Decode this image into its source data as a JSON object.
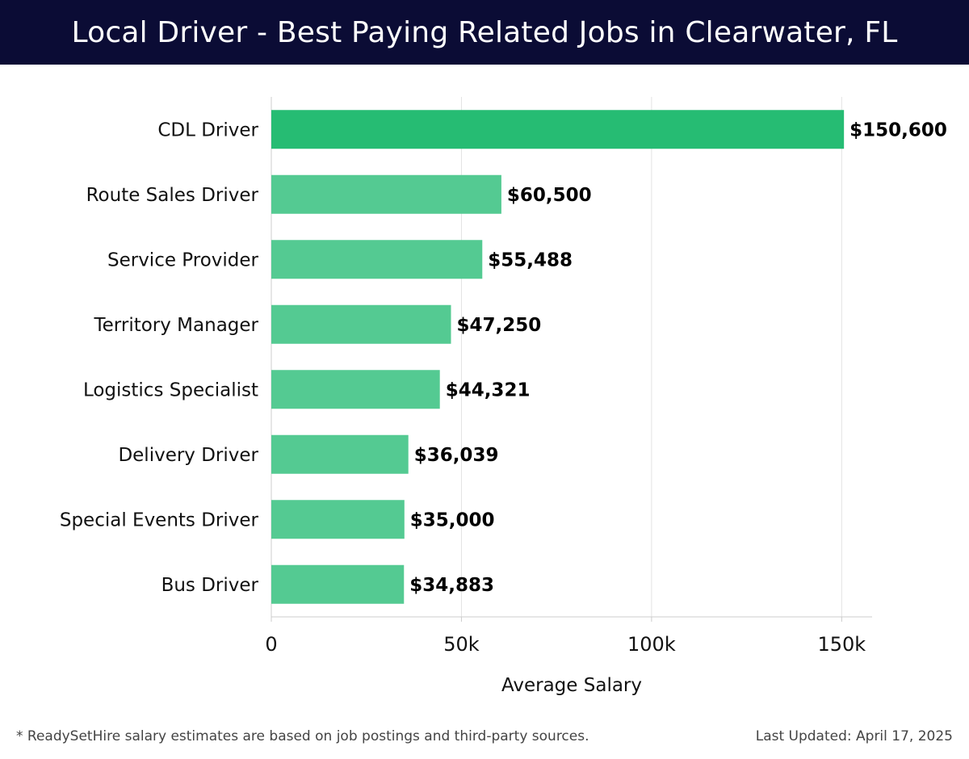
{
  "header": {
    "title": "Local Driver - Best Paying Related Jobs in Clearwater, FL"
  },
  "chart_data": {
    "type": "bar",
    "orientation": "horizontal",
    "categories": [
      "CDL Driver",
      "Route Sales Driver",
      "Service Provider",
      "Territory Manager",
      "Logistics Specialist",
      "Delivery Driver",
      "Special Events Driver",
      "Bus Driver"
    ],
    "values": [
      150600,
      60500,
      55488,
      47250,
      44321,
      36039,
      35000,
      34883
    ],
    "value_labels": [
      "$150,600",
      "$60,500",
      "$55,488",
      "$47,250",
      "$44,321",
      "$36,039",
      "$35,000",
      "$34,883"
    ],
    "xlabel": "Average Salary",
    "ylabel": "",
    "xlim": [
      0,
      158000
    ],
    "x_ticks": [
      0,
      50000,
      100000,
      150000
    ],
    "x_tick_labels": [
      "0",
      "50k",
      "100k",
      "150k"
    ],
    "grid": true,
    "colors": {
      "top_bar": "#26bc73",
      "bar": "#54ca92",
      "grid": "#e3e3e3",
      "axis": "#cccccc"
    }
  },
  "footer": {
    "note": "* ReadySetHire salary estimates are based on job postings and third-party sources.",
    "updated": "Last Updated: April 17, 2025"
  }
}
